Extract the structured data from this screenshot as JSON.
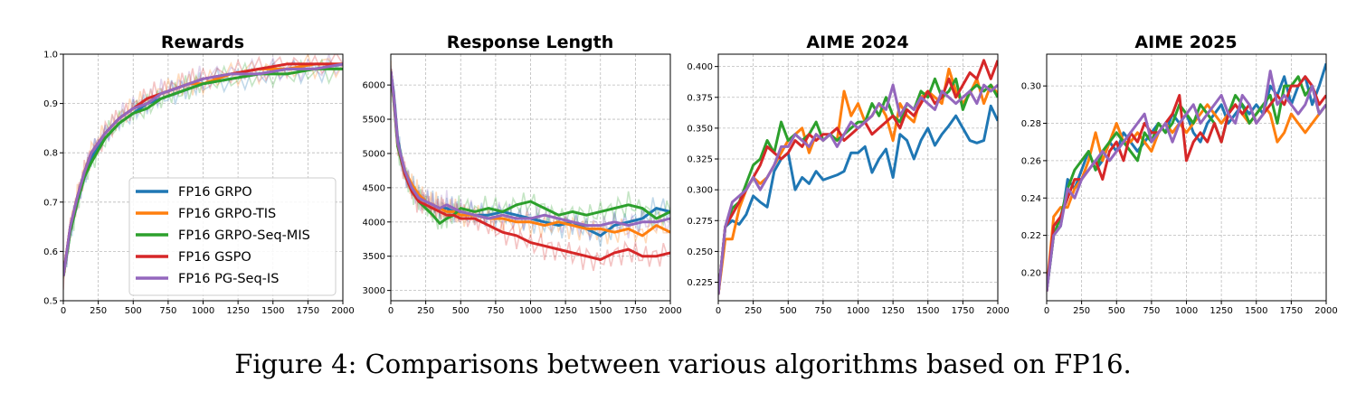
{
  "caption": "Figure 4: Comparisons between various algorithms based on FP16.",
  "legend": [
    {
      "label": "FP16 GRPO",
      "color": "#1f77b4"
    },
    {
      "label": "FP16 GRPO-TIS",
      "color": "#ff7f0e"
    },
    {
      "label": "FP16 GRPO-Seq-MIS",
      "color": "#2ca02c"
    },
    {
      "label": "FP16 GSPO",
      "color": "#d62728"
    },
    {
      "label": "FP16 PG-Seq-IS",
      "color": "#9467bd"
    }
  ],
  "chart_data": [
    {
      "type": "line",
      "title": "Rewards",
      "xlabel": "",
      "ylabel": "",
      "xlim": [
        0,
        2000
      ],
      "ylim": [
        0.5,
        1.0
      ],
      "xticks": [
        0,
        250,
        500,
        750,
        1000,
        1250,
        1500,
        1750,
        2000
      ],
      "yticks": [
        0.5,
        0.6,
        0.7,
        0.8,
        0.9,
        1.0
      ],
      "ytick_labels": [
        "0.5",
        "0.6",
        "0.7",
        "0.8",
        "0.9",
        "1.0"
      ],
      "grid": true,
      "legend_position": "lower-right",
      "raw_series_shaded": true,
      "x": [
        0,
        50,
        100,
        150,
        200,
        300,
        400,
        500,
        600,
        700,
        800,
        900,
        1000,
        1200,
        1400,
        1600,
        1800,
        2000
      ],
      "series": [
        {
          "name": "FP16 GRPO",
          "values": [
            0.55,
            0.64,
            0.7,
            0.75,
            0.79,
            0.83,
            0.86,
            0.88,
            0.9,
            0.91,
            0.92,
            0.93,
            0.94,
            0.95,
            0.96,
            0.97,
            0.97,
            0.98
          ]
        },
        {
          "name": "FP16 GRPO-TIS",
          "values": [
            0.55,
            0.65,
            0.71,
            0.76,
            0.8,
            0.84,
            0.87,
            0.89,
            0.9,
            0.92,
            0.93,
            0.94,
            0.94,
            0.96,
            0.97,
            0.97,
            0.98,
            0.98
          ]
        },
        {
          "name": "FP16 GRPO-Seq-MIS",
          "values": [
            0.55,
            0.64,
            0.7,
            0.75,
            0.78,
            0.83,
            0.86,
            0.88,
            0.89,
            0.91,
            0.92,
            0.93,
            0.94,
            0.95,
            0.96,
            0.96,
            0.97,
            0.97
          ]
        },
        {
          "name": "FP16 GSPO",
          "values": [
            0.55,
            0.65,
            0.71,
            0.76,
            0.8,
            0.84,
            0.87,
            0.89,
            0.91,
            0.92,
            0.93,
            0.94,
            0.95,
            0.96,
            0.97,
            0.98,
            0.98,
            0.98
          ]
        },
        {
          "name": "FP16 PG-Seq-IS",
          "values": [
            0.55,
            0.65,
            0.71,
            0.76,
            0.8,
            0.84,
            0.87,
            0.89,
            0.9,
            0.92,
            0.93,
            0.94,
            0.95,
            0.96,
            0.96,
            0.97,
            0.97,
            0.98
          ]
        }
      ]
    },
    {
      "type": "line",
      "title": "Response Length",
      "xlabel": "",
      "ylabel": "",
      "xlim": [
        0,
        2000
      ],
      "ylim": [
        2850,
        6450
      ],
      "xticks": [
        0,
        250,
        500,
        750,
        1000,
        1250,
        1500,
        1750,
        2000
      ],
      "yticks": [
        3000,
        3500,
        4000,
        4500,
        5000,
        5500,
        6000
      ],
      "ytick_labels": [
        "3000",
        "3500",
        "4000",
        "4500",
        "5000",
        "5500",
        "6000"
      ],
      "grid": true,
      "raw_series_shaded": true,
      "x": [
        0,
        20,
        50,
        100,
        150,
        200,
        250,
        300,
        350,
        400,
        450,
        500,
        600,
        700,
        800,
        900,
        1000,
        1100,
        1200,
        1300,
        1400,
        1500,
        1600,
        1700,
        1800,
        1900,
        2000
      ],
      "series": [
        {
          "name": "FP16 GRPO",
          "values": [
            6200,
            5900,
            5200,
            4700,
            4500,
            4350,
            4300,
            4250,
            4200,
            4200,
            4150,
            4150,
            4100,
            4100,
            4150,
            4100,
            4050,
            4000,
            3950,
            4000,
            3900,
            3800,
            3950,
            4000,
            4050,
            4200,
            4150
          ]
        },
        {
          "name": "FP16 GRPO-TIS",
          "values": [
            6200,
            5800,
            5100,
            4750,
            4550,
            4400,
            4300,
            4250,
            4200,
            4150,
            4150,
            4100,
            4100,
            4050,
            4050,
            4000,
            4000,
            3950,
            4000,
            3950,
            3900,
            3900,
            3850,
            3900,
            3800,
            3950,
            3850
          ]
        },
        {
          "name": "FP16 GRPO-Seq-MIS",
          "values": [
            6200,
            5800,
            5100,
            4700,
            4450,
            4300,
            4200,
            4100,
            3980,
            4050,
            4100,
            4200,
            4150,
            4200,
            4150,
            4250,
            4300,
            4200,
            4100,
            4150,
            4100,
            4150,
            4200,
            4250,
            4200,
            4050,
            4150
          ]
        },
        {
          "name": "FP16 GSPO",
          "values": [
            6200,
            5850,
            5150,
            4700,
            4450,
            4300,
            4250,
            4200,
            4150,
            4100,
            4100,
            4050,
            4050,
            3950,
            3850,
            3800,
            3700,
            3650,
            3600,
            3550,
            3500,
            3450,
            3550,
            3600,
            3500,
            3500,
            3550
          ]
        },
        {
          "name": "FP16 PG-Seq-IS",
          "values": [
            6200,
            5850,
            5150,
            4750,
            4500,
            4350,
            4300,
            4250,
            4200,
            4250,
            4200,
            4150,
            4100,
            4050,
            4100,
            4050,
            4050,
            4100,
            4050,
            4000,
            3950,
            3950,
            4000,
            3950,
            4000,
            4000,
            4050
          ]
        }
      ]
    },
    {
      "type": "line",
      "title": "AIME 2024",
      "xlabel": "",
      "ylabel": "",
      "xlim": [
        0,
        2000
      ],
      "ylim": [
        0.21,
        0.41
      ],
      "xticks": [
        0,
        250,
        500,
        750,
        1000,
        1250,
        1500,
        1750,
        2000
      ],
      "yticks": [
        0.225,
        0.25,
        0.275,
        0.3,
        0.325,
        0.35,
        0.375,
        0.4
      ],
      "ytick_labels": [
        "0.225",
        "0.250",
        "0.275",
        "0.300",
        "0.325",
        "0.350",
        "0.375",
        "0.400"
      ],
      "grid": true,
      "x": [
        0,
        50,
        100,
        150,
        200,
        250,
        300,
        350,
        400,
        450,
        500,
        550,
        600,
        650,
        700,
        750,
        800,
        850,
        900,
        950,
        1000,
        1050,
        1100,
        1150,
        1200,
        1250,
        1300,
        1350,
        1400,
        1450,
        1500,
        1550,
        1600,
        1650,
        1700,
        1750,
        1800,
        1850,
        1900,
        1950,
        2000
      ],
      "series": [
        {
          "name": "FP16 GRPO",
          "values": [
            0.215,
            0.27,
            0.275,
            0.272,
            0.28,
            0.295,
            0.29,
            0.286,
            0.315,
            0.325,
            0.33,
            0.3,
            0.31,
            0.305,
            0.315,
            0.308,
            0.31,
            0.312,
            0.315,
            0.33,
            0.33,
            0.335,
            0.314,
            0.325,
            0.333,
            0.31,
            0.345,
            0.34,
            0.325,
            0.34,
            0.35,
            0.336,
            0.345,
            0.352,
            0.36,
            0.35,
            0.34,
            0.338,
            0.34,
            0.368,
            0.356
          ]
        },
        {
          "name": "FP16 GRPO-TIS",
          "values": [
            0.215,
            0.26,
            0.26,
            0.285,
            0.3,
            0.31,
            0.305,
            0.31,
            0.32,
            0.33,
            0.34,
            0.345,
            0.35,
            0.33,
            0.345,
            0.34,
            0.345,
            0.34,
            0.38,
            0.36,
            0.37,
            0.355,
            0.36,
            0.37,
            0.36,
            0.34,
            0.37,
            0.36,
            0.355,
            0.375,
            0.38,
            0.375,
            0.37,
            0.398,
            0.38,
            0.37,
            0.378,
            0.39,
            0.37,
            0.385,
            0.378
          ]
        },
        {
          "name": "FP16 GRPO-Seq-MIS",
          "values": [
            0.215,
            0.27,
            0.285,
            0.29,
            0.305,
            0.32,
            0.325,
            0.34,
            0.33,
            0.355,
            0.34,
            0.345,
            0.34,
            0.345,
            0.355,
            0.34,
            0.345,
            0.34,
            0.345,
            0.35,
            0.355,
            0.355,
            0.37,
            0.36,
            0.375,
            0.36,
            0.355,
            0.37,
            0.365,
            0.38,
            0.375,
            0.39,
            0.375,
            0.38,
            0.39,
            0.365,
            0.38,
            0.385,
            0.38,
            0.385,
            0.375
          ]
        },
        {
          "name": "FP16 GSPO",
          "values": [
            0.215,
            0.27,
            0.28,
            0.29,
            0.3,
            0.31,
            0.32,
            0.335,
            0.33,
            0.325,
            0.33,
            0.34,
            0.335,
            0.345,
            0.34,
            0.345,
            0.345,
            0.35,
            0.34,
            0.345,
            0.35,
            0.355,
            0.345,
            0.35,
            0.355,
            0.36,
            0.35,
            0.365,
            0.36,
            0.37,
            0.38,
            0.37,
            0.375,
            0.39,
            0.375,
            0.385,
            0.395,
            0.39,
            0.405,
            0.39,
            0.405
          ]
        },
        {
          "name": "FP16 PG-Seq-IS",
          "values": [
            0.215,
            0.27,
            0.29,
            0.295,
            0.3,
            0.31,
            0.3,
            0.31,
            0.32,
            0.335,
            0.335,
            0.345,
            0.34,
            0.335,
            0.345,
            0.34,
            0.345,
            0.335,
            0.345,
            0.355,
            0.35,
            0.355,
            0.36,
            0.37,
            0.365,
            0.385,
            0.36,
            0.37,
            0.365,
            0.375,
            0.37,
            0.365,
            0.38,
            0.375,
            0.37,
            0.375,
            0.38,
            0.37,
            0.385,
            0.38,
            0.385
          ]
        }
      ]
    },
    {
      "type": "line",
      "title": "AIME 2025",
      "xlabel": "",
      "ylabel": "",
      "xlim": [
        0,
        2000
      ],
      "ylim": [
        0.185,
        0.317
      ],
      "xticks": [
        0,
        250,
        500,
        750,
        1000,
        1250,
        1500,
        1750,
        2000
      ],
      "yticks": [
        0.2,
        0.22,
        0.24,
        0.26,
        0.28,
        0.3
      ],
      "ytick_labels": [
        "0.20",
        "0.22",
        "0.24",
        "0.26",
        "0.28",
        "0.30"
      ],
      "grid": true,
      "x": [
        0,
        50,
        100,
        150,
        200,
        250,
        300,
        350,
        400,
        450,
        500,
        550,
        600,
        650,
        700,
        750,
        800,
        850,
        900,
        950,
        1000,
        1050,
        1100,
        1150,
        1200,
        1250,
        1300,
        1350,
        1400,
        1450,
        1500,
        1550,
        1600,
        1650,
        1700,
        1750,
        1800,
        1850,
        1900,
        1950,
        2000
      ],
      "series": [
        {
          "name": "FP16 GRPO",
          "values": [
            0.19,
            0.22,
            0.225,
            0.25,
            0.245,
            0.255,
            0.265,
            0.255,
            0.26,
            0.27,
            0.265,
            0.275,
            0.27,
            0.265,
            0.27,
            0.275,
            0.28,
            0.275,
            0.285,
            0.28,
            0.285,
            0.275,
            0.27,
            0.28,
            0.285,
            0.29,
            0.28,
            0.285,
            0.29,
            0.285,
            0.29,
            0.285,
            0.3,
            0.295,
            0.305,
            0.29,
            0.3,
            0.305,
            0.29,
            0.3,
            0.312
          ]
        },
        {
          "name": "FP16 GRPO-TIS",
          "values": [
            0.19,
            0.23,
            0.235,
            0.235,
            0.245,
            0.25,
            0.26,
            0.275,
            0.26,
            0.27,
            0.28,
            0.27,
            0.27,
            0.275,
            0.27,
            0.265,
            0.275,
            0.28,
            0.275,
            0.28,
            0.275,
            0.28,
            0.285,
            0.29,
            0.285,
            0.28,
            0.285,
            0.29,
            0.285,
            0.28,
            0.285,
            0.29,
            0.285,
            0.27,
            0.275,
            0.285,
            0.28,
            0.275,
            0.28,
            0.285,
            0.29
          ]
        },
        {
          "name": "FP16 GRPO-Seq-MIS",
          "values": [
            0.19,
            0.22,
            0.23,
            0.245,
            0.255,
            0.26,
            0.265,
            0.255,
            0.265,
            0.27,
            0.275,
            0.27,
            0.265,
            0.26,
            0.275,
            0.27,
            0.28,
            0.275,
            0.28,
            0.29,
            0.285,
            0.28,
            0.29,
            0.285,
            0.28,
            0.27,
            0.285,
            0.295,
            0.29,
            0.28,
            0.285,
            0.29,
            0.295,
            0.28,
            0.3,
            0.3,
            0.305,
            0.295,
            0.3,
            0.285,
            0.29
          ]
        },
        {
          "name": "FP16 GSPO",
          "values": [
            0.19,
            0.225,
            0.23,
            0.24,
            0.25,
            0.25,
            0.255,
            0.26,
            0.25,
            0.265,
            0.27,
            0.26,
            0.275,
            0.27,
            0.28,
            0.275,
            0.275,
            0.28,
            0.285,
            0.295,
            0.26,
            0.27,
            0.275,
            0.27,
            0.28,
            0.27,
            0.285,
            0.29,
            0.285,
            0.29,
            0.28,
            0.285,
            0.29,
            0.295,
            0.29,
            0.3,
            0.3,
            0.305,
            0.3,
            0.29,
            0.295
          ]
        },
        {
          "name": "FP16 PG-Seq-IS",
          "values": [
            0.19,
            0.22,
            0.225,
            0.245,
            0.24,
            0.25,
            0.255,
            0.26,
            0.265,
            0.26,
            0.265,
            0.27,
            0.275,
            0.28,
            0.285,
            0.27,
            0.275,
            0.28,
            0.27,
            0.28,
            0.285,
            0.29,
            0.28,
            0.285,
            0.29,
            0.295,
            0.285,
            0.28,
            0.295,
            0.29,
            0.28,
            0.285,
            0.308,
            0.29,
            0.295,
            0.29,
            0.285,
            0.29,
            0.3,
            0.285,
            0.29
          ]
        }
      ]
    }
  ]
}
